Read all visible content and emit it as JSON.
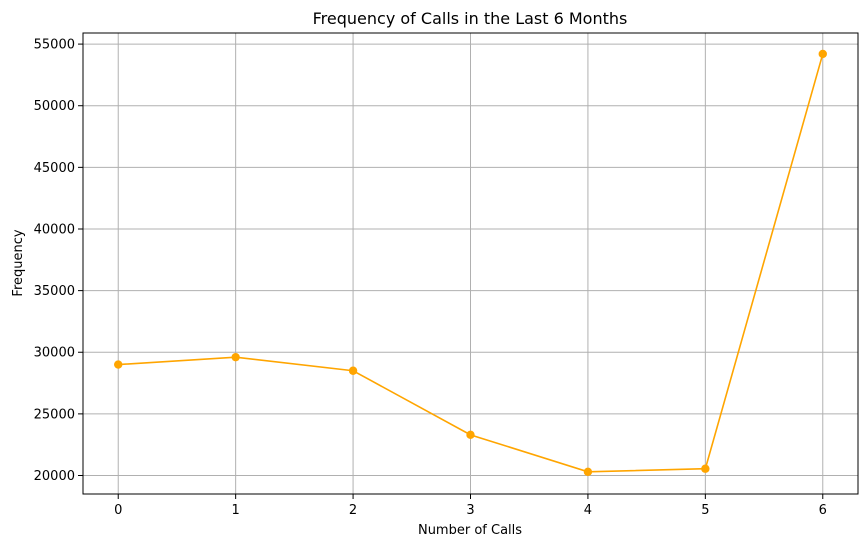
{
  "chart_data": {
    "type": "line",
    "title": "Frequency of Calls in the Last 6 Months",
    "xlabel": "Number of Calls",
    "ylabel": "Frequency",
    "x": [
      0,
      1,
      2,
      3,
      4,
      5,
      6
    ],
    "series": [
      {
        "values": [
          29000,
          29600,
          28500,
          23300,
          20300,
          20550,
          54200
        ],
        "color": "#FFA500",
        "marker": "circle"
      }
    ],
    "xlim": [
      -0.3,
      6.3
    ],
    "ylim": [
      18500,
      55900
    ],
    "xticks": [
      "0",
      "1",
      "2",
      "3",
      "4",
      "5",
      "6"
    ],
    "yticks": [
      "20000",
      "25000",
      "30000",
      "35000",
      "40000",
      "45000",
      "50000",
      "55000"
    ],
    "grid": true
  }
}
